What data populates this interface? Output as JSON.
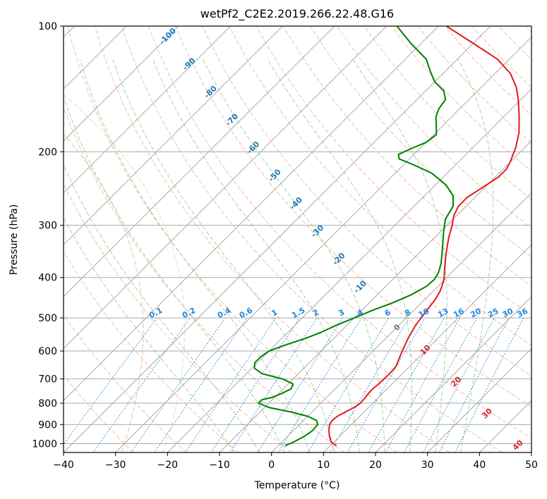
{
  "chart_data": {
    "type": "line",
    "subtype": "skew-T log-P diagram",
    "title": "wetPf2_C2E2.2019.266.22.48.G16",
    "xlabel": "Temperature (°C)",
    "ylabel": "Pressure (hPa)",
    "xlim": [
      -40,
      50
    ],
    "ylim": [
      1050,
      100
    ],
    "y_scale": "log",
    "x_ticks": [
      -40,
      -30,
      -20,
      -10,
      0,
      10,
      20,
      30,
      40,
      50
    ],
    "x_tick_labels": [
      "−40",
      "−30",
      "−20",
      "−10",
      "0",
      "10",
      "20",
      "30",
      "40",
      "50"
    ],
    "y_ticks": [
      1000,
      900,
      800,
      700,
      600,
      500,
      400,
      300,
      200,
      100
    ],
    "y_tick_labels": [
      "1000",
      "900",
      "800",
      "700",
      "600",
      "500",
      "400",
      "300",
      "200",
      "100"
    ],
    "grid": true,
    "series": [
      {
        "name": "Temperature",
        "color": "#e41a1c",
        "points": [
          [
            1012,
            11.2
          ],
          [
            990,
            9.4
          ],
          [
            960,
            8.0
          ],
          [
            930,
            6.8
          ],
          [
            900,
            5.8
          ],
          [
            880,
            5.5
          ],
          [
            860,
            5.7
          ],
          [
            840,
            6.4
          ],
          [
            820,
            7.2
          ],
          [
            800,
            7.6
          ],
          [
            780,
            7.5
          ],
          [
            760,
            7.3
          ],
          [
            740,
            7.2
          ],
          [
            720,
            7.4
          ],
          [
            700,
            7.5
          ],
          [
            670,
            7.5
          ],
          [
            650,
            7.3
          ],
          [
            630,
            6.6
          ],
          [
            600,
            5.6
          ],
          [
            560,
            4.3
          ],
          [
            520,
            3.2
          ],
          [
            480,
            2.5
          ],
          [
            450,
            2.0
          ],
          [
            430,
            1.3
          ],
          [
            410,
            0.2
          ],
          [
            400,
            -0.5
          ],
          [
            380,
            -2.2
          ],
          [
            350,
            -4.8
          ],
          [
            320,
            -7.4
          ],
          [
            300,
            -9.0
          ],
          [
            285,
            -10.5
          ],
          [
            270,
            -11.5
          ],
          [
            257,
            -11.5
          ],
          [
            248,
            -10.8
          ],
          [
            240,
            -10.2
          ],
          [
            230,
            -9.4
          ],
          [
            220,
            -9.4
          ],
          [
            210,
            -10.2
          ],
          [
            195,
            -11.8
          ],
          [
            180,
            -14.0
          ],
          [
            165,
            -17.0
          ],
          [
            150,
            -20.5
          ],
          [
            140,
            -23.3
          ],
          [
            130,
            -27.0
          ],
          [
            120,
            -32.3
          ],
          [
            110,
            -40.0
          ],
          [
            100,
            -48.5
          ]
        ]
      },
      {
        "name": "Dewpoint",
        "color": "#008000",
        "points": [
          [
            1012,
            1.3
          ],
          [
            990,
            2.3
          ],
          [
            960,
            3.2
          ],
          [
            930,
            3.7
          ],
          [
            900,
            3.5
          ],
          [
            880,
            2.5
          ],
          [
            860,
            0.0
          ],
          [
            840,
            -4.0
          ],
          [
            820,
            -9.0
          ],
          [
            800,
            -12.0
          ],
          [
            785,
            -12.0
          ],
          [
            775,
            -10.5
          ],
          [
            760,
            -9.5
          ],
          [
            740,
            -8.5
          ],
          [
            720,
            -9.0
          ],
          [
            700,
            -12.0
          ],
          [
            680,
            -17.0
          ],
          [
            660,
            -19.5
          ],
          [
            640,
            -20.5
          ],
          [
            620,
            -20.5
          ],
          [
            600,
            -20.0
          ],
          [
            580,
            -18.0
          ],
          [
            560,
            -15.5
          ],
          [
            540,
            -13.5
          ],
          [
            520,
            -12.0
          ],
          [
            500,
            -10.0
          ],
          [
            480,
            -8.0
          ],
          [
            460,
            -5.5
          ],
          [
            440,
            -3.5
          ],
          [
            420,
            -2.2
          ],
          [
            405,
            -2.0
          ],
          [
            390,
            -2.5
          ],
          [
            370,
            -3.8
          ],
          [
            340,
            -6.5
          ],
          [
            310,
            -9.5
          ],
          [
            290,
            -11.5
          ],
          [
            270,
            -12.5
          ],
          [
            255,
            -14.5
          ],
          [
            240,
            -18.0
          ],
          [
            225,
            -23.0
          ],
          [
            215,
            -28.0
          ],
          [
            208,
            -32.0
          ],
          [
            203,
            -33.0
          ],
          [
            197,
            -31.8
          ],
          [
            190,
            -30.0
          ],
          [
            182,
            -29.5
          ],
          [
            172,
            -31.5
          ],
          [
            165,
            -33.0
          ],
          [
            158,
            -34.0
          ],
          [
            150,
            -34.5
          ],
          [
            143,
            -36.5
          ],
          [
            136,
            -40.0
          ],
          [
            128,
            -43.0
          ],
          [
            120,
            -46.0
          ],
          [
            110,
            -52.0
          ],
          [
            100,
            -58.0
          ]
        ]
      }
    ],
    "dry_adiabat_labels": [
      "-100",
      "-90",
      "-80",
      "-70",
      "-60",
      "-50",
      "-40",
      "-30",
      "-20",
      "-10",
      "0",
      "10",
      "20",
      "30",
      "40"
    ],
    "mixing_ratio_labels": [
      "0.1",
      "0.2",
      "0.4",
      "0.6",
      "1",
      "1.5",
      "2",
      "3",
      "4",
      "6",
      "8",
      "10",
      "13",
      "16",
      "20",
      "25",
      "30",
      "36"
    ],
    "colors": {
      "isotherm": "#aaaaaa",
      "isobar": "#aaaaaa",
      "dry_adiabat": "#f5a582",
      "moist_adiabat": "#8fc88f",
      "mixing_ratio": "#1e88e5",
      "theta_label": "#1f77b4",
      "warm_label": "#d62728",
      "zero_label": "#777777",
      "dgz_curve": "#d2b48c"
    }
  }
}
